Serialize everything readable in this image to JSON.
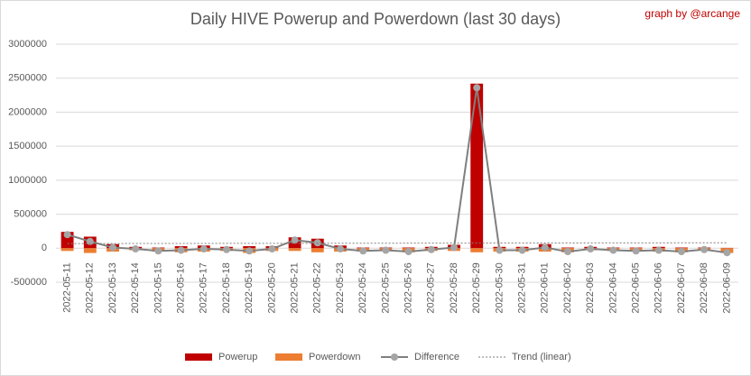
{
  "chart_data": {
    "type": "bar",
    "title": "Daily HIVE Powerup and Powerdown (last 30 days)",
    "annotation": "graph by @arcange",
    "categories": [
      "2022-05-11",
      "2022-05-12",
      "2022-05-13",
      "2022-05-14",
      "2022-05-15",
      "2022-05-16",
      "2022-05-17",
      "2022-05-18",
      "2022-05-19",
      "2022-05-20",
      "2022-05-21",
      "2022-05-22",
      "2022-05-23",
      "2022-05-24",
      "2022-05-25",
      "2022-05-26",
      "2022-05-27",
      "2022-05-28",
      "2022-05-29",
      "2022-05-30",
      "2022-05-31",
      "2022-06-01",
      "2022-06-02",
      "2022-06-03",
      "2022-06-04",
      "2022-06-05",
      "2022-06-06",
      "2022-06-07",
      "2022-06-08",
      "2022-06-09"
    ],
    "series": [
      {
        "name": "Powerup",
        "color": "#c00000",
        "kind": "bar",
        "values": [
          240000,
          170000,
          60000,
          20000,
          10000,
          30000,
          40000,
          20000,
          30000,
          30000,
          160000,
          140000,
          40000,
          10000,
          10000,
          10000,
          20000,
          50000,
          2420000,
          20000,
          20000,
          60000,
          10000,
          20000,
          10000,
          10000,
          20000,
          10000,
          10000,
          5000
        ]
      },
      {
        "name": "Powerdown",
        "color": "#ed7d31",
        "kind": "bar",
        "values": [
          -40000,
          -70000,
          -50000,
          -30000,
          -50000,
          -60000,
          -50000,
          -40000,
          -70000,
          -40000,
          -40000,
          -60000,
          -50000,
          -50000,
          -40000,
          -60000,
          -40000,
          -40000,
          -60000,
          -50000,
          -50000,
          -50000,
          -60000,
          -30000,
          -40000,
          -50000,
          -50000,
          -60000,
          -30000,
          -70000
        ]
      },
      {
        "name": "Difference",
        "color": "#a5a5a5",
        "kind": "line",
        "values": [
          200000,
          100000,
          10000,
          -10000,
          -40000,
          -30000,
          -10000,
          -20000,
          -40000,
          -10000,
          120000,
          80000,
          -10000,
          -40000,
          -30000,
          -50000,
          -20000,
          10000,
          2360000,
          -30000,
          -30000,
          10000,
          -50000,
          -10000,
          -30000,
          -40000,
          -30000,
          -50000,
          -20000,
          -65000
        ]
      },
      {
        "name": "Trend (linear)",
        "color": "#a5a5a5",
        "kind": "trend",
        "of": "Difference"
      }
    ],
    "ylim": [
      -500000,
      3000000
    ],
    "yticks": [
      -500000,
      0,
      500000,
      1000000,
      1500000,
      2000000,
      2500000,
      3000000
    ],
    "grid": true
  }
}
